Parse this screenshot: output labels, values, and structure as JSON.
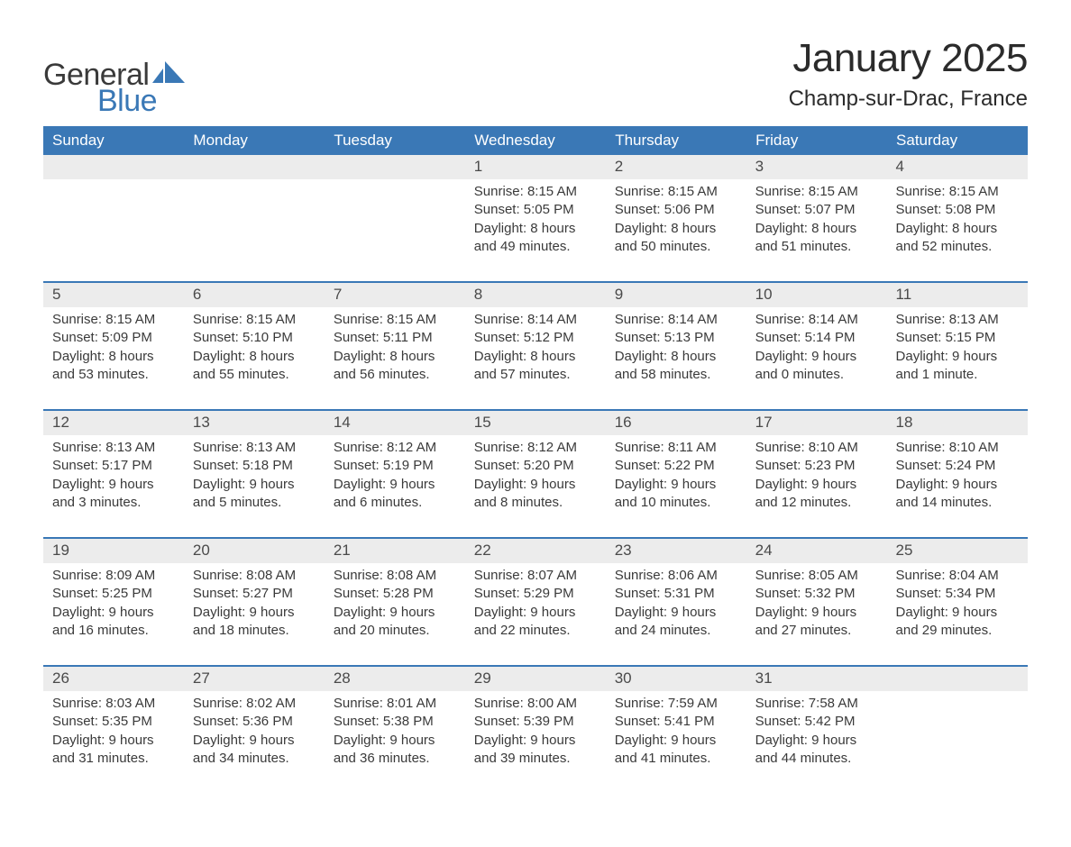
{
  "logo": {
    "word1": "General",
    "word2": "Blue",
    "icon_color": "#3a78b6"
  },
  "title": "January 2025",
  "location": "Champ-sur-Drac, France",
  "colors": {
    "header_bg": "#3a78b6",
    "header_text": "#ffffff",
    "daynum_bg": "#ececec",
    "text": "#333333",
    "rule": "#3a78b6"
  },
  "days_of_week": [
    "Sunday",
    "Monday",
    "Tuesday",
    "Wednesday",
    "Thursday",
    "Friday",
    "Saturday"
  ],
  "weeks": [
    [
      null,
      null,
      null,
      {
        "n": "1",
        "sr": "8:15 AM",
        "ss": "5:05 PM",
        "dl": "8 hours and 49 minutes."
      },
      {
        "n": "2",
        "sr": "8:15 AM",
        "ss": "5:06 PM",
        "dl": "8 hours and 50 minutes."
      },
      {
        "n": "3",
        "sr": "8:15 AM",
        "ss": "5:07 PM",
        "dl": "8 hours and 51 minutes."
      },
      {
        "n": "4",
        "sr": "8:15 AM",
        "ss": "5:08 PM",
        "dl": "8 hours and 52 minutes."
      }
    ],
    [
      {
        "n": "5",
        "sr": "8:15 AM",
        "ss": "5:09 PM",
        "dl": "8 hours and 53 minutes."
      },
      {
        "n": "6",
        "sr": "8:15 AM",
        "ss": "5:10 PM",
        "dl": "8 hours and 55 minutes."
      },
      {
        "n": "7",
        "sr": "8:15 AM",
        "ss": "5:11 PM",
        "dl": "8 hours and 56 minutes."
      },
      {
        "n": "8",
        "sr": "8:14 AM",
        "ss": "5:12 PM",
        "dl": "8 hours and 57 minutes."
      },
      {
        "n": "9",
        "sr": "8:14 AM",
        "ss": "5:13 PM",
        "dl": "8 hours and 58 minutes."
      },
      {
        "n": "10",
        "sr": "8:14 AM",
        "ss": "5:14 PM",
        "dl": "9 hours and 0 minutes."
      },
      {
        "n": "11",
        "sr": "8:13 AM",
        "ss": "5:15 PM",
        "dl": "9 hours and 1 minute."
      }
    ],
    [
      {
        "n": "12",
        "sr": "8:13 AM",
        "ss": "5:17 PM",
        "dl": "9 hours and 3 minutes."
      },
      {
        "n": "13",
        "sr": "8:13 AM",
        "ss": "5:18 PM",
        "dl": "9 hours and 5 minutes."
      },
      {
        "n": "14",
        "sr": "8:12 AM",
        "ss": "5:19 PM",
        "dl": "9 hours and 6 minutes."
      },
      {
        "n": "15",
        "sr": "8:12 AM",
        "ss": "5:20 PM",
        "dl": "9 hours and 8 minutes."
      },
      {
        "n": "16",
        "sr": "8:11 AM",
        "ss": "5:22 PM",
        "dl": "9 hours and 10 minutes."
      },
      {
        "n": "17",
        "sr": "8:10 AM",
        "ss": "5:23 PM",
        "dl": "9 hours and 12 minutes."
      },
      {
        "n": "18",
        "sr": "8:10 AM",
        "ss": "5:24 PM",
        "dl": "9 hours and 14 minutes."
      }
    ],
    [
      {
        "n": "19",
        "sr": "8:09 AM",
        "ss": "5:25 PM",
        "dl": "9 hours and 16 minutes."
      },
      {
        "n": "20",
        "sr": "8:08 AM",
        "ss": "5:27 PM",
        "dl": "9 hours and 18 minutes."
      },
      {
        "n": "21",
        "sr": "8:08 AM",
        "ss": "5:28 PM",
        "dl": "9 hours and 20 minutes."
      },
      {
        "n": "22",
        "sr": "8:07 AM",
        "ss": "5:29 PM",
        "dl": "9 hours and 22 minutes."
      },
      {
        "n": "23",
        "sr": "8:06 AM",
        "ss": "5:31 PM",
        "dl": "9 hours and 24 minutes."
      },
      {
        "n": "24",
        "sr": "8:05 AM",
        "ss": "5:32 PM",
        "dl": "9 hours and 27 minutes."
      },
      {
        "n": "25",
        "sr": "8:04 AM",
        "ss": "5:34 PM",
        "dl": "9 hours and 29 minutes."
      }
    ],
    [
      {
        "n": "26",
        "sr": "8:03 AM",
        "ss": "5:35 PM",
        "dl": "9 hours and 31 minutes."
      },
      {
        "n": "27",
        "sr": "8:02 AM",
        "ss": "5:36 PM",
        "dl": "9 hours and 34 minutes."
      },
      {
        "n": "28",
        "sr": "8:01 AM",
        "ss": "5:38 PM",
        "dl": "9 hours and 36 minutes."
      },
      {
        "n": "29",
        "sr": "8:00 AM",
        "ss": "5:39 PM",
        "dl": "9 hours and 39 minutes."
      },
      {
        "n": "30",
        "sr": "7:59 AM",
        "ss": "5:41 PM",
        "dl": "9 hours and 41 minutes."
      },
      {
        "n": "31",
        "sr": "7:58 AM",
        "ss": "5:42 PM",
        "dl": "9 hours and 44 minutes."
      },
      null
    ]
  ],
  "labels": {
    "sunrise": "Sunrise:",
    "sunset": "Sunset:",
    "daylight": "Daylight:"
  }
}
